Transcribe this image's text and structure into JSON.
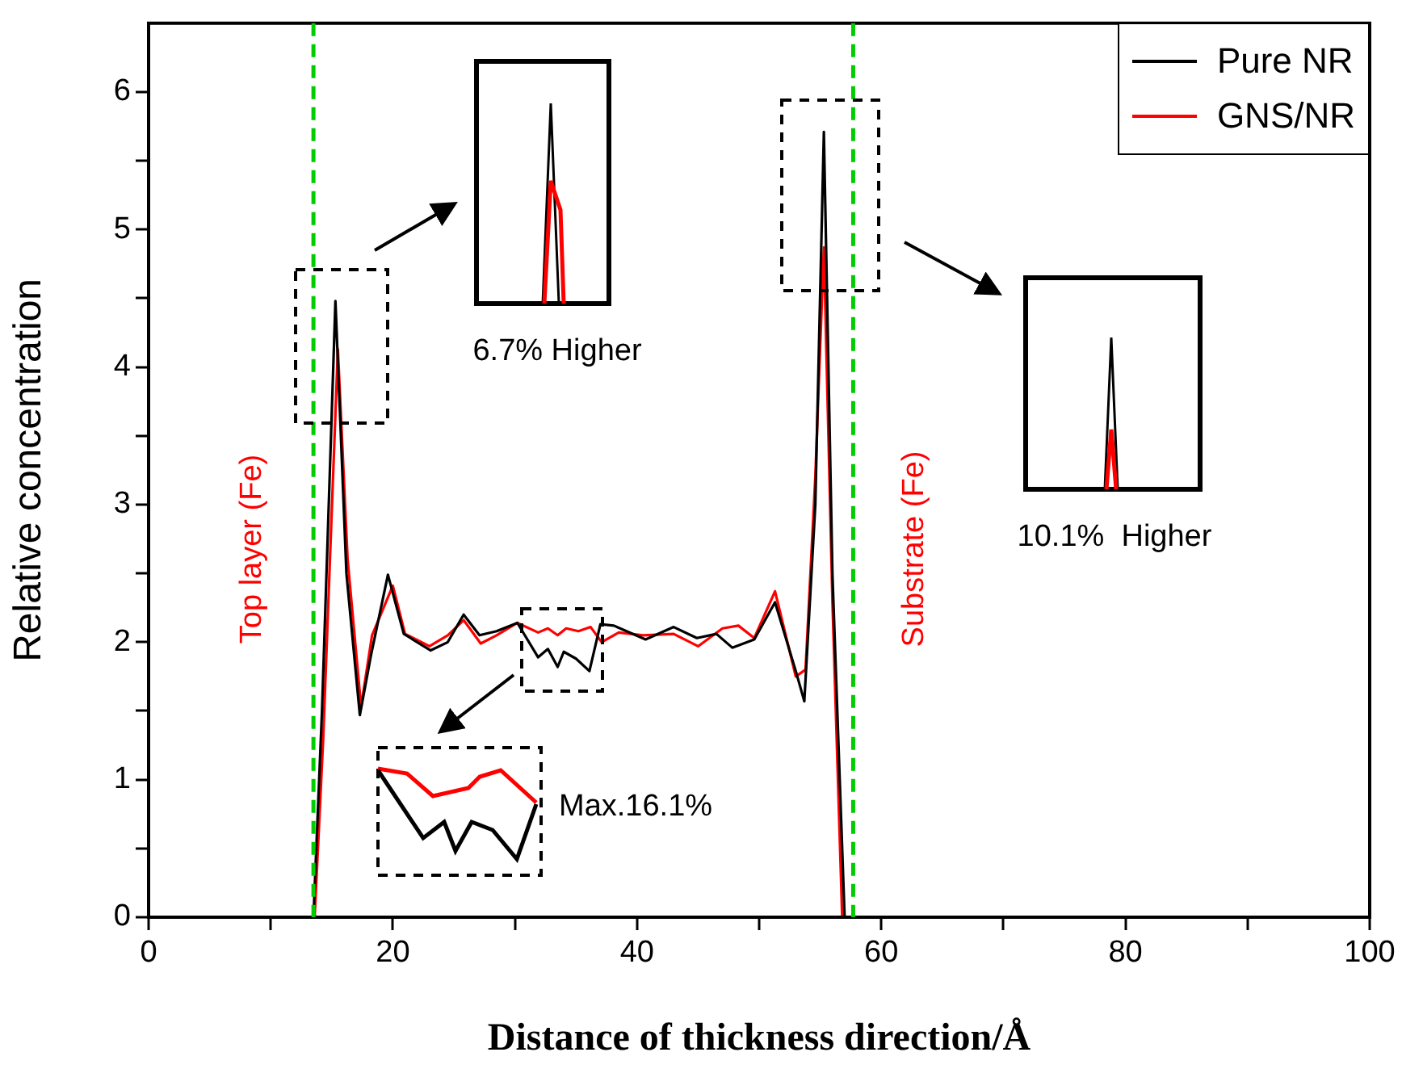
{
  "chart_data": {
    "type": "line",
    "xlabel": "Distance of thickness direction/Å",
    "ylabel": "Relative concentration",
    "xlim": [
      0,
      100
    ],
    "xticks": [
      0,
      {
        "value": 10,
        "label": null
      },
      20,
      {
        "value": 30,
        "label": null
      },
      40,
      {
        "value": 50,
        "label": null
      },
      60,
      {
        "value": 70,
        "label": null
      },
      80,
      {
        "value": 90,
        "label": null
      },
      100
    ],
    "ylim": [
      0,
      6.5
    ],
    "yticks": [
      0,
      {
        "value": 0.5,
        "label": null
      },
      1,
      {
        "value": 1.5,
        "label": null
      },
      2,
      {
        "value": 2.5,
        "label": null
      },
      3,
      {
        "value": 3.5,
        "label": null
      },
      4,
      {
        "value": 4.5,
        "label": null
      },
      5,
      {
        "value": 5.5,
        "label": null
      },
      6
    ],
    "grid": false,
    "legend": "top right",
    "marker": "none",
    "line_style": "solid",
    "series": [
      {
        "name": "Pure NR",
        "color": "#000000",
        "x": [
          0,
          13.5,
          14.2,
          15.3,
          16.2,
          17.3,
          18.2,
          19.6,
          20.9,
          23.1,
          24.5,
          25.8,
          27.1,
          28.5,
          30.2,
          31.9,
          32.7,
          33.5,
          34.0,
          35.0,
          36.1,
          37.0,
          38.1,
          40.7,
          43.0,
          44.9,
          46.5,
          47.8,
          49.6,
          51.3,
          53.0,
          53.7,
          54.6,
          55.3,
          56.0,
          57.0,
          60,
          90
        ],
        "values": [
          0,
          0,
          1.5,
          4.48,
          2.5,
          1.47,
          1.9,
          2.49,
          2.06,
          1.94,
          2.0,
          2.2,
          2.05,
          2.08,
          2.14,
          1.89,
          1.95,
          1.82,
          1.93,
          1.88,
          1.79,
          2.13,
          2.12,
          2.02,
          2.11,
          2.03,
          2.06,
          1.96,
          2.02,
          2.29,
          1.79,
          1.57,
          3.0,
          5.71,
          2.5,
          0,
          0,
          0
        ]
      },
      {
        "name": "GNS/NR",
        "color": "#ff0000",
        "x": [
          0,
          13.6,
          14.3,
          15.5,
          16.3,
          17.4,
          18.3,
          20.0,
          21.0,
          23.0,
          24.5,
          25.8,
          27.2,
          28.5,
          30.2,
          31.9,
          32.7,
          33.5,
          34.2,
          35.2,
          36.2,
          37.1,
          38.5,
          40.5,
          43.0,
          45.0,
          47.0,
          48.3,
          49.6,
          51.3,
          53.0,
          53.8,
          54.6,
          55.3,
          56.0,
          56.8,
          60,
          90
        ],
        "values": [
          0,
          0,
          1.3,
          4.13,
          2.6,
          1.53,
          2.05,
          2.41,
          2.06,
          1.97,
          2.05,
          2.16,
          1.99,
          2.05,
          2.14,
          2.07,
          2.1,
          2.05,
          2.1,
          2.08,
          2.11,
          2.0,
          2.07,
          2.05,
          2.06,
          1.97,
          2.1,
          2.12,
          2.03,
          2.37,
          1.75,
          1.8,
          3.2,
          4.87,
          2.3,
          0,
          0,
          0
        ]
      }
    ],
    "ref_lines": [
      {
        "axis": "x",
        "value": 13.5,
        "label": "Top layer (Fe)",
        "color": "#00cc00",
        "line_style": "dashed"
      },
      {
        "axis": "x",
        "value": 57.7,
        "label": "Substrate (Fe)",
        "color": "#00cc00",
        "line_style": "dashed"
      }
    ],
    "annotations": [
      "6.7% Higher",
      "10.1%  Higher",
      "Max.16.1%"
    ]
  }
}
